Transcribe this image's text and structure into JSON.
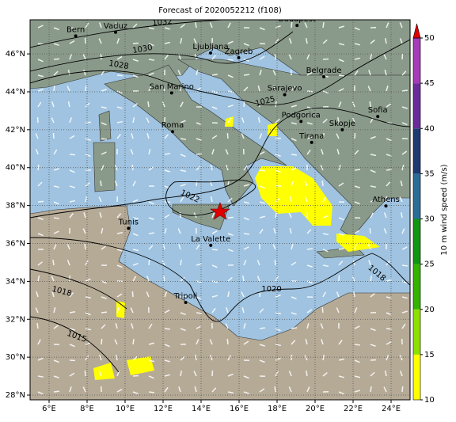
{
  "title": "Forecast of 2020052212 (f108)",
  "map": {
    "xlim": [
      5,
      25
    ],
    "ylim": [
      27.75,
      47.8
    ],
    "xticks": [
      {
        "value": 6,
        "label": "6°E"
      },
      {
        "value": 8,
        "label": "8°E"
      },
      {
        "value": 10,
        "label": "10°E"
      },
      {
        "value": 12,
        "label": "12°E"
      },
      {
        "value": 14,
        "label": "14°E"
      },
      {
        "value": 16,
        "label": "16°E"
      },
      {
        "value": 18,
        "label": "18°E"
      },
      {
        "value": 20,
        "label": "20°E"
      },
      {
        "value": 22,
        "label": "22°E"
      },
      {
        "value": 24,
        "label": "24°E"
      }
    ],
    "yticks": [
      {
        "value": 28,
        "label": "28°N"
      },
      {
        "value": 30,
        "label": "30°N"
      },
      {
        "value": 32,
        "label": "32°N"
      },
      {
        "value": 34,
        "label": "34°N"
      },
      {
        "value": 36,
        "label": "36°N"
      },
      {
        "value": 38,
        "label": "38°N"
      },
      {
        "value": 40,
        "label": "40°N"
      },
      {
        "value": 42,
        "label": "42°N"
      },
      {
        "value": 44,
        "label": "44°N"
      },
      {
        "value": 46,
        "label": "46°N"
      }
    ],
    "grid": true,
    "cities": [
      {
        "name": "Bern",
        "lon": 7.4,
        "lat": 46.95
      },
      {
        "name": "Vaduz",
        "lon": 9.5,
        "lat": 47.14
      },
      {
        "name": "Budapest",
        "lon": 19.05,
        "lat": 47.5
      },
      {
        "name": "Ljubljana",
        "lon": 14.5,
        "lat": 46.05
      },
      {
        "name": "Zagreb",
        "lon": 15.98,
        "lat": 45.8
      },
      {
        "name": "Belgrade",
        "lon": 20.46,
        "lat": 44.8
      },
      {
        "name": "San Marino",
        "lon": 12.45,
        "lat": 43.94
      },
      {
        "name": "Sarajevo",
        "lon": 18.4,
        "lat": 43.85
      },
      {
        "name": "Sofia",
        "lon": 23.3,
        "lat": 42.7
      },
      {
        "name": "Podgorica",
        "lon": 19.26,
        "lat": 42.44
      },
      {
        "name": "Skopje",
        "lon": 21.43,
        "lat": 42.0
      },
      {
        "name": "Roma",
        "lon": 12.5,
        "lat": 41.9
      },
      {
        "name": "Tirana",
        "lon": 19.82,
        "lat": 41.33
      },
      {
        "name": "Athens",
        "lon": 23.73,
        "lat": 37.98
      },
      {
        "name": "Tunis",
        "lon": 10.18,
        "lat": 36.8
      },
      {
        "name": "La Valette",
        "lon": 14.51,
        "lat": 35.9
      },
      {
        "name": "Tripoli",
        "lon": 13.19,
        "lat": 32.89
      }
    ],
    "isobar_labels": [
      "1032",
      "1030",
      "1028",
      "1025",
      "1022",
      "1020",
      "1018",
      "1018",
      "1015"
    ]
  },
  "colorbar": {
    "label": "10 m wind speed (m/s)",
    "lim": [
      10,
      50
    ],
    "ticks": [
      10,
      15,
      20,
      25,
      30,
      35,
      40,
      45,
      50
    ],
    "colors": [
      "#ffff00",
      "#8ee000",
      "#33b400",
      "#119611",
      "#2a6e98",
      "#1f3a70",
      "#6a2c9c",
      "#a63ab8"
    ],
    "extend_color": "#e00000"
  }
}
